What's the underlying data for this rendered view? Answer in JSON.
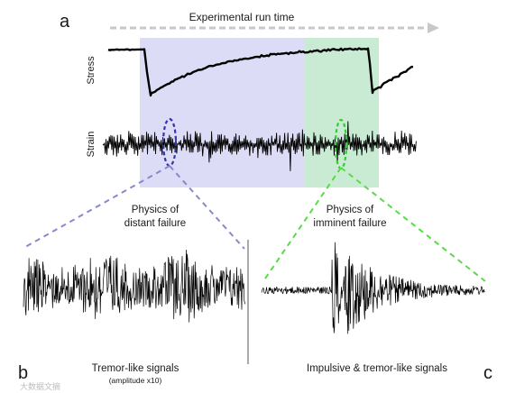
{
  "panel_labels": {
    "a": "a",
    "b": "b",
    "c": "c"
  },
  "top": {
    "run_time_label": "Experimental run time",
    "stress_label": "Stress",
    "strain_label": "Strain"
  },
  "captions": {
    "distant_line1": "Physics of",
    "distant_line2": "distant failure",
    "imminent_line1": "Physics of",
    "imminent_line2": "imminent failure",
    "tremor": "Tremor-like signals",
    "tremor_note": "(amplitude x10)",
    "impulsive": "Impulsive & tremor-like signals"
  },
  "watermark": "大数据文摘",
  "colors": {
    "blue_zone": "#dcdcf6",
    "green_zone": "#c9ebd3",
    "blue_dash": "#8888cc",
    "green_dash": "#55dd44",
    "blue_ellipse": "#3333aa",
    "green_ellipse": "#33cc33",
    "arrow": "#c8c8c8",
    "signal": "#000000"
  }
}
